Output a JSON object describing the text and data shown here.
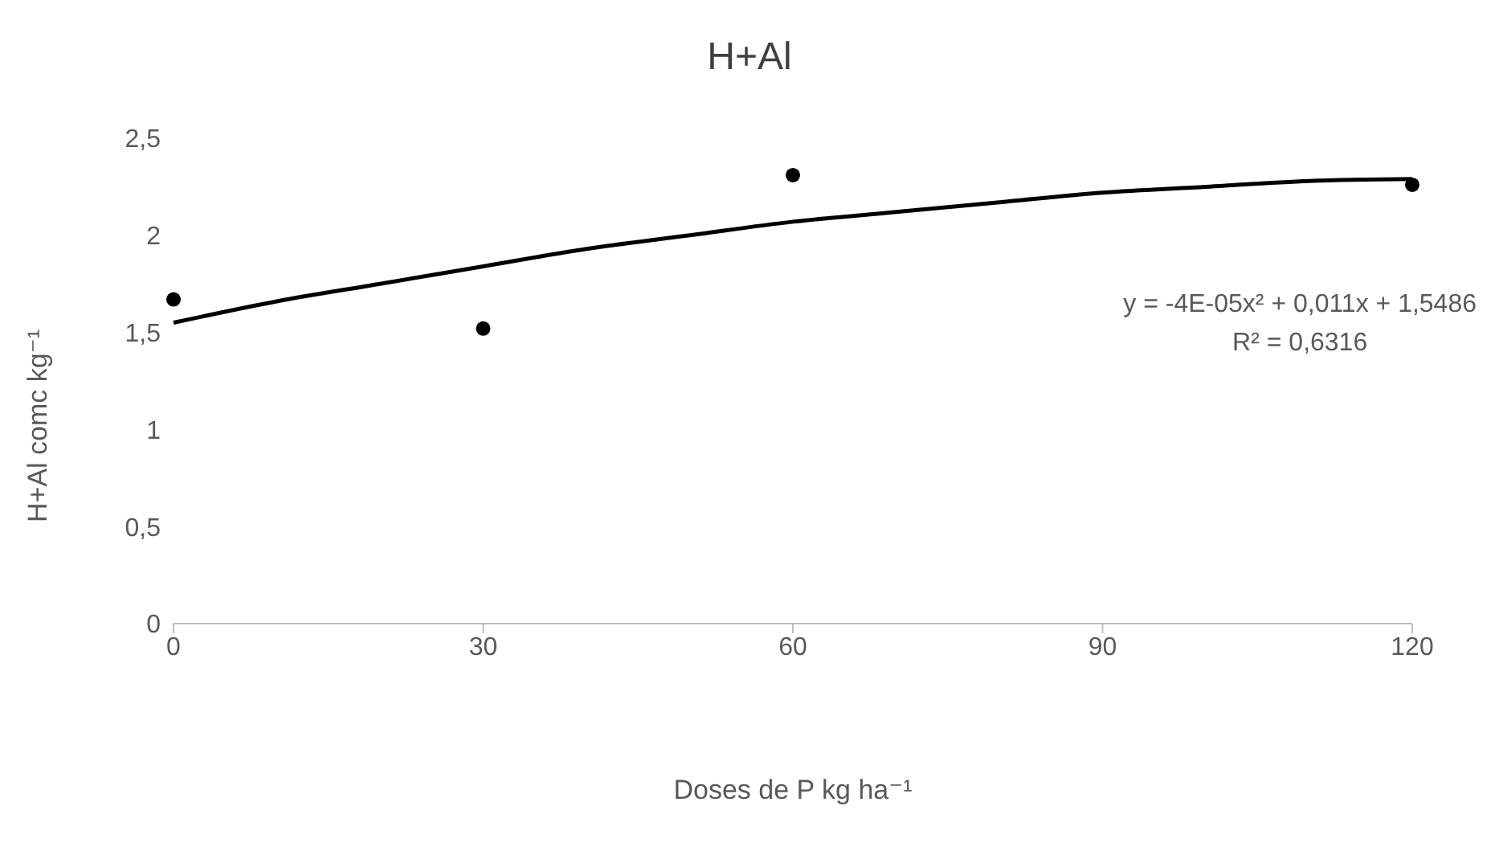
{
  "chart_data": {
    "type": "scatter",
    "title": "H+Al",
    "xlabel": "Doses de P kg ha⁻¹",
    "ylabel": "H+Al comc kg⁻¹",
    "xlim": [
      0,
      120
    ],
    "xticks": [
      0,
      30,
      60,
      90,
      120
    ],
    "ylim": [
      0,
      2.5
    ],
    "yticks": [
      0,
      {
        "value": 0.5,
        "label": "0,5"
      },
      1,
      {
        "value": 1.5,
        "label": "1,5"
      },
      2,
      {
        "value": 2.5,
        "label": "2,5"
      }
    ],
    "series": [
      {
        "marker": "circle",
        "color": "#000000",
        "x": [
          0,
          30,
          60,
          120
        ],
        "values": [
          1.67,
          1.52,
          2.31,
          2.26
        ]
      },
      {
        "type": "line",
        "marker": "none",
        "color": "#000000",
        "x": [
          0,
          10,
          20,
          30,
          40,
          50,
          60,
          70,
          80,
          90,
          100,
          110,
          120
        ],
        "values": [
          1.55,
          1.66,
          1.75,
          1.84,
          1.93,
          2.0,
          2.07,
          2.12,
          2.17,
          2.22,
          2.25,
          2.28,
          2.29
        ]
      }
    ],
    "annotations": [
      "y = -4E-05x² + 0,011x + 1,5486",
      "R² = 0,6316"
    ]
  }
}
